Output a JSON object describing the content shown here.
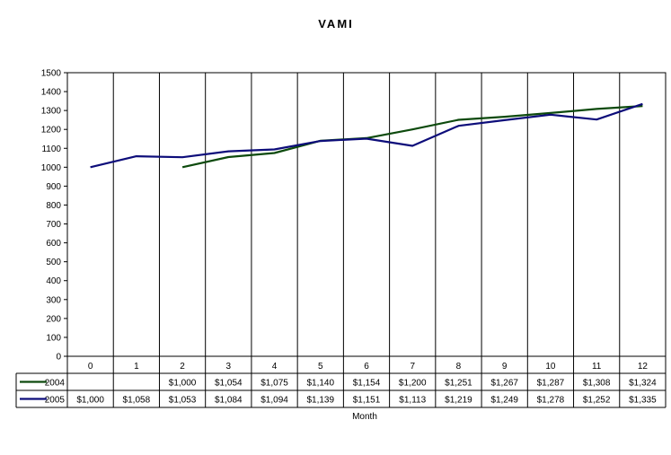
{
  "chart_data": {
    "type": "line",
    "title": "VAMI",
    "xlabel": "Month",
    "ylabel": "",
    "ylim": [
      0,
      1500
    ],
    "yticks": [
      0,
      100,
      200,
      300,
      400,
      500,
      600,
      700,
      800,
      900,
      1000,
      1100,
      1200,
      1300,
      1400,
      1500
    ],
    "categories": [
      "0",
      "1",
      "2",
      "3",
      "4",
      "5",
      "6",
      "7",
      "8",
      "9",
      "10",
      "11",
      "12"
    ],
    "grid": {
      "vertical": true,
      "horizontal": false
    },
    "legend": "data-table",
    "series": [
      {
        "name": "2004",
        "color": "#0d4a0d",
        "values": [
          null,
          null,
          1000,
          1054,
          1075,
          1140,
          1154,
          1200,
          1251,
          1267,
          1287,
          1308,
          1324
        ],
        "labels": [
          "",
          "",
          "$1,000",
          "$1,054",
          "$1,075",
          "$1,140",
          "$1,154",
          "$1,200",
          "$1,251",
          "$1,267",
          "$1,287",
          "$1,308",
          "$1,324"
        ]
      },
      {
        "name": "2005",
        "color": "#0d0d7a",
        "values": [
          1000,
          1058,
          1053,
          1084,
          1094,
          1139,
          1151,
          1113,
          1219,
          1249,
          1278,
          1252,
          1335
        ],
        "labels": [
          "$1,000",
          "$1,058",
          "$1,053",
          "$1,084",
          "$1,094",
          "$1,139",
          "$1,151",
          "$1,113",
          "$1,219",
          "$1,249",
          "$1,278",
          "$1,252",
          "$1,335"
        ]
      }
    ]
  }
}
